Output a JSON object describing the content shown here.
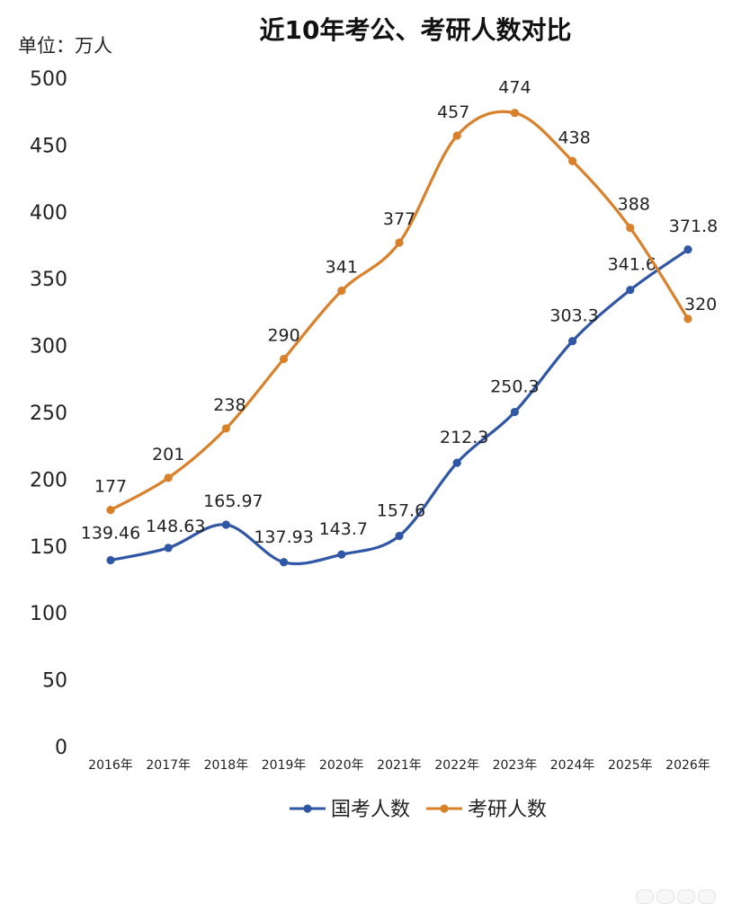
{
  "chart_data": {
    "type": "line",
    "title": "近10年考公、考研人数对比",
    "unit_label": "单位：万人",
    "categories": [
      "2016年",
      "2017年",
      "2018年",
      "2019年",
      "2020年",
      "2021年",
      "2022年",
      "2023年",
      "2024年",
      "2025年",
      "2026年"
    ],
    "ylim": [
      0,
      500
    ],
    "yticks": [
      0,
      50,
      100,
      150,
      200,
      250,
      300,
      350,
      400,
      450,
      500
    ],
    "grid": false,
    "legend_position": "bottom",
    "series": [
      {
        "name": "国考人数",
        "color": "#3056a6",
        "values": [
          139.46,
          148.63,
          165.97,
          137.93,
          143.7,
          157.6,
          212.3,
          250.3,
          303.3,
          341.6,
          371.8
        ],
        "labels": [
          "139.46",
          "148.63",
          "165.97",
          "137.93",
          "143.7",
          "157.6",
          "212.3",
          "250.3",
          "303.3",
          "341.6",
          "371.8"
        ]
      },
      {
        "name": "考研人数",
        "color": "#d9802b",
        "values": [
          177,
          201,
          238,
          290,
          341,
          377,
          457,
          474,
          438,
          388,
          320
        ],
        "labels": [
          "177",
          "201",
          "238",
          "290",
          "341",
          "377",
          "457",
          "474",
          "438",
          "388",
          "320"
        ]
      }
    ]
  }
}
